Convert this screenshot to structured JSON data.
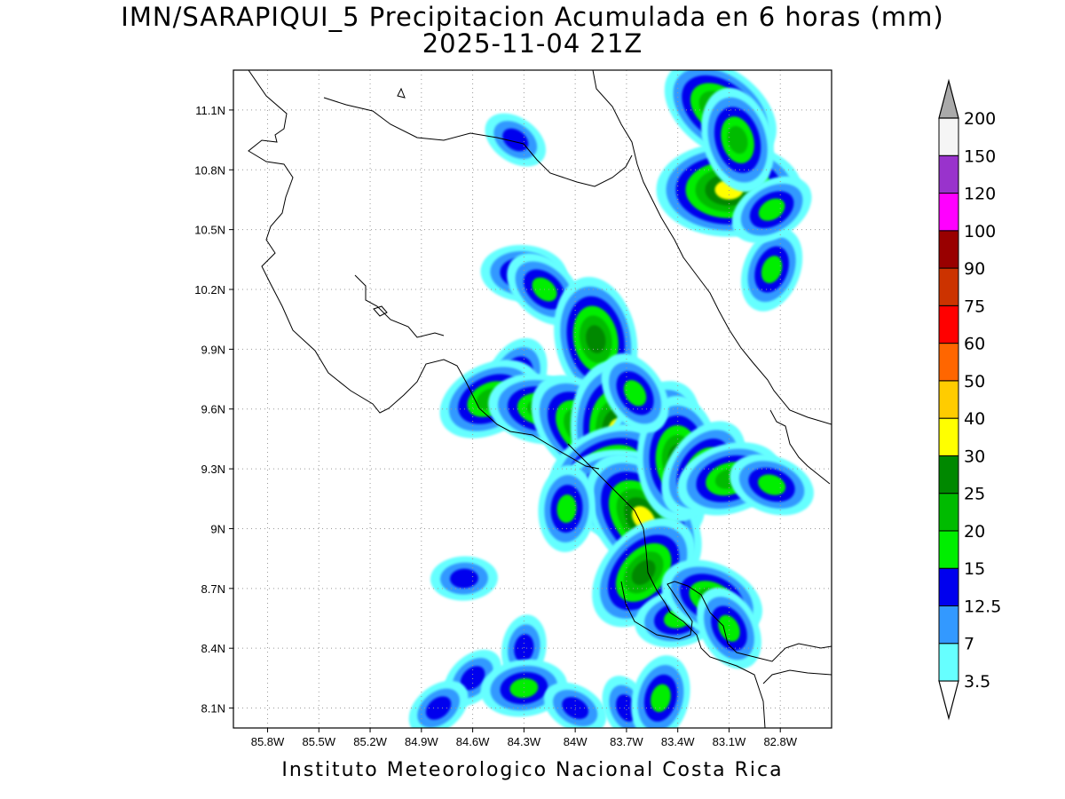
{
  "title": {
    "line1": "IMN/SARAPIQUI_5 Precipitacion Acumulada en 6 horas (mm)",
    "line2": "2025-11-04 21Z"
  },
  "footer": "Instituto Meteorologico Nacional Costa Rica",
  "axes": {
    "lon_ticks": [
      "85.8W",
      "85.5W",
      "85.2W",
      "84.9W",
      "84.6W",
      "84.3W",
      "84W",
      "83.7W",
      "83.4W",
      "83.1W",
      "82.8W"
    ],
    "lat_ticks": [
      "11.1N",
      "10.8N",
      "10.5N",
      "10.2N",
      "9.9N",
      "9.6N",
      "9.3N",
      "9N",
      "8.7N",
      "8.4N",
      "8.1N"
    ],
    "lon_range": [
      -86.0,
      -82.5
    ],
    "lat_range": [
      8.0,
      11.3
    ],
    "grid": "dotted"
  },
  "colorbar": {
    "labels": [
      "3.5",
      "7",
      "12.5",
      "15",
      "20",
      "25",
      "30",
      "40",
      "50",
      "60",
      "75",
      "90",
      "100",
      "120",
      "150",
      "200"
    ],
    "colors": [
      "#66ffff",
      "#3399ff",
      "#0000ee",
      "#00ee00",
      "#00bb00",
      "#008800",
      "#ffff00",
      "#ffcc00",
      "#ff6600",
      "#ff0000",
      "#cc3300",
      "#990000",
      "#ff00ff",
      "#9933cc",
      "#f5f5f5",
      "#aaaaaa"
    ]
  },
  "precip_cells": [
    {
      "lon": -83.1,
      "lat": 10.7,
      "intensity": 6
    },
    {
      "lon": -83.15,
      "lat": 11.1,
      "intensity": 5
    },
    {
      "lon": -83.05,
      "lat": 10.95,
      "intensity": 4
    },
    {
      "lon": -82.85,
      "lat": 10.3,
      "intensity": 3
    },
    {
      "lon": -82.85,
      "lat": 10.6,
      "intensity": 3
    },
    {
      "lon": -84.3,
      "lat": 10.28,
      "intensity": 3
    },
    {
      "lon": -84.18,
      "lat": 10.2,
      "intensity": 3
    },
    {
      "lon": -83.88,
      "lat": 9.95,
      "intensity": 5
    },
    {
      "lon": -84.35,
      "lat": 9.75,
      "intensity": 3
    },
    {
      "lon": -84.5,
      "lat": 9.65,
      "intensity": 4
    },
    {
      "lon": -84.2,
      "lat": 9.6,
      "intensity": 4
    },
    {
      "lon": -83.95,
      "lat": 9.5,
      "intensity": 5
    },
    {
      "lon": -83.75,
      "lat": 9.48,
      "intensity": 6
    },
    {
      "lon": -83.55,
      "lat": 9.45,
      "intensity": 5
    },
    {
      "lon": -83.8,
      "lat": 9.3,
      "intensity": 5
    },
    {
      "lon": -83.66,
      "lat": 9.15,
      "intensity": 6
    },
    {
      "lon": -83.6,
      "lat": 9.05,
      "intensity": 6
    },
    {
      "lon": -83.4,
      "lat": 9.35,
      "intensity": 5
    },
    {
      "lon": -83.25,
      "lat": 9.3,
      "intensity": 4
    },
    {
      "lon": -83.1,
      "lat": 9.25,
      "intensity": 4
    },
    {
      "lon": -82.85,
      "lat": 9.22,
      "intensity": 3
    },
    {
      "lon": -83.65,
      "lat": 9.68,
      "intensity": 3
    },
    {
      "lon": -84.05,
      "lat": 9.1,
      "intensity": 3
    },
    {
      "lon": -83.6,
      "lat": 8.78,
      "intensity": 5
    },
    {
      "lon": -83.4,
      "lat": 8.55,
      "intensity": 3
    },
    {
      "lon": -83.2,
      "lat": 8.65,
      "intensity": 4
    },
    {
      "lon": -83.1,
      "lat": 8.5,
      "intensity": 3
    },
    {
      "lon": -84.3,
      "lat": 8.4,
      "intensity": 2
    },
    {
      "lon": -84.6,
      "lat": 8.25,
      "intensity": 2
    },
    {
      "lon": -84.3,
      "lat": 8.2,
      "intensity": 3
    },
    {
      "lon": -84.0,
      "lat": 8.1,
      "intensity": 2
    },
    {
      "lon": -83.7,
      "lat": 8.1,
      "intensity": 2
    },
    {
      "lon": -83.5,
      "lat": 8.15,
      "intensity": 3
    },
    {
      "lon": -84.8,
      "lat": 8.1,
      "intensity": 2
    },
    {
      "lon": -84.65,
      "lat": 8.75,
      "intensity": 2
    },
    {
      "lon": -84.35,
      "lat": 10.95,
      "intensity": 2
    }
  ]
}
